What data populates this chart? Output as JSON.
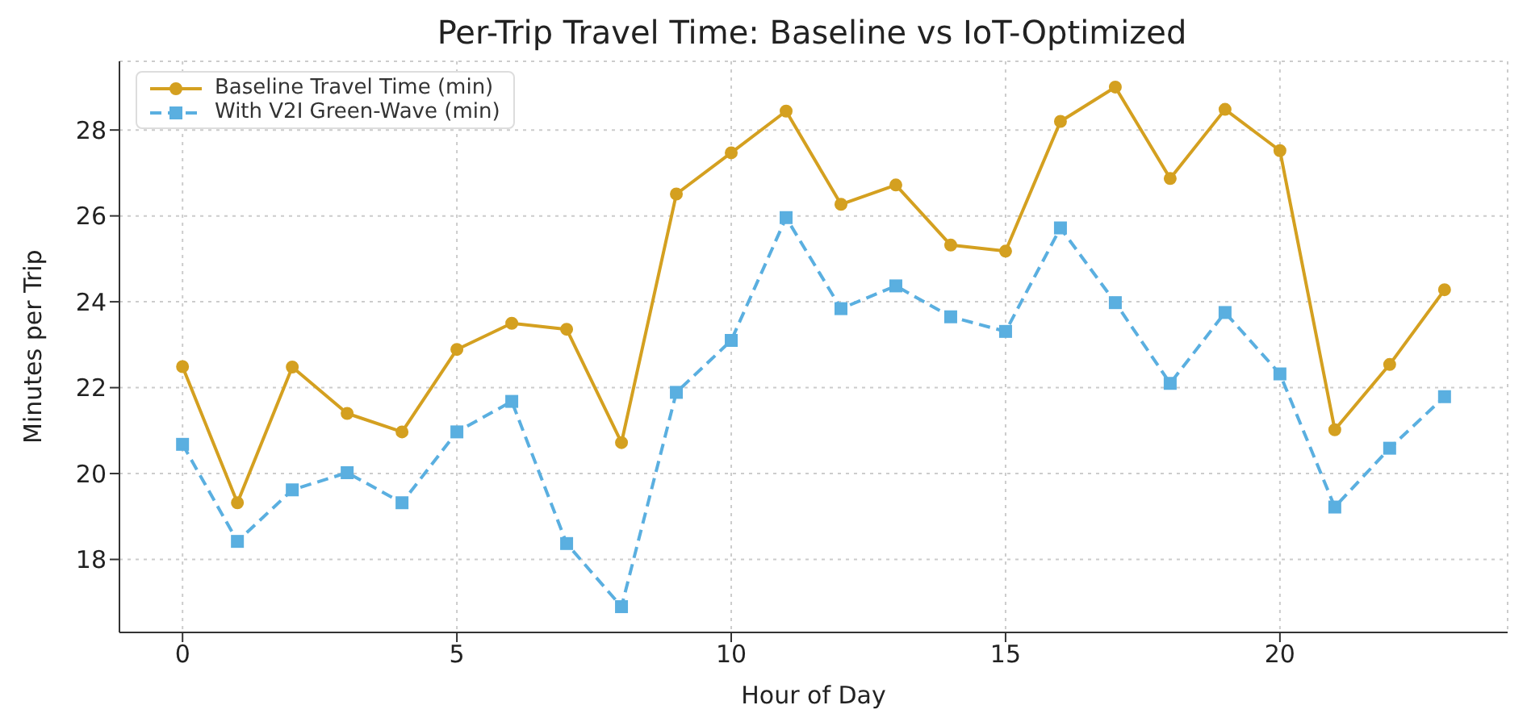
{
  "chart_data": {
    "type": "line",
    "title": "Per-Trip Travel Time: Baseline vs IoT-Optimized",
    "xlabel": "Hour of Day",
    "ylabel": "Minutes per Trip",
    "x": [
      0,
      1,
      2,
      3,
      4,
      5,
      6,
      7,
      8,
      9,
      10,
      11,
      12,
      13,
      14,
      15,
      16,
      17,
      18,
      19,
      20,
      21,
      22,
      23
    ],
    "series": [
      {
        "name": "Baseline Travel Time (min)",
        "color": "#d4a020",
        "marker": "circle",
        "line_style": "solid",
        "values": [
          22.49,
          19.32,
          22.48,
          21.4,
          20.97,
          22.89,
          23.5,
          23.36,
          20.72,
          26.51,
          27.47,
          28.44,
          26.27,
          26.72,
          25.32,
          25.18,
          28.2,
          29.0,
          26.87,
          28.48,
          27.52,
          21.02,
          22.54,
          24.28
        ]
      },
      {
        "name": "With V2I Green-Wave (min)",
        "color": "#5aafe0",
        "marker": "square",
        "line_style": "dashed",
        "values": [
          20.68,
          18.42,
          19.62,
          20.02,
          19.32,
          20.97,
          21.68,
          18.37,
          16.9,
          21.89,
          23.1,
          25.96,
          23.84,
          24.37,
          23.65,
          23.31,
          25.72,
          23.98,
          22.1,
          23.75,
          22.32,
          19.22,
          20.59,
          21.79
        ]
      }
    ],
    "xlim": [
      -1.15,
      24.15
    ],
    "xticks": [
      0,
      5,
      10,
      15,
      20
    ],
    "ylim": [
      16.3,
      29.6
    ],
    "yticks": [
      18,
      20,
      22,
      24,
      26,
      28
    ],
    "grid": true,
    "legend": "top left"
  }
}
